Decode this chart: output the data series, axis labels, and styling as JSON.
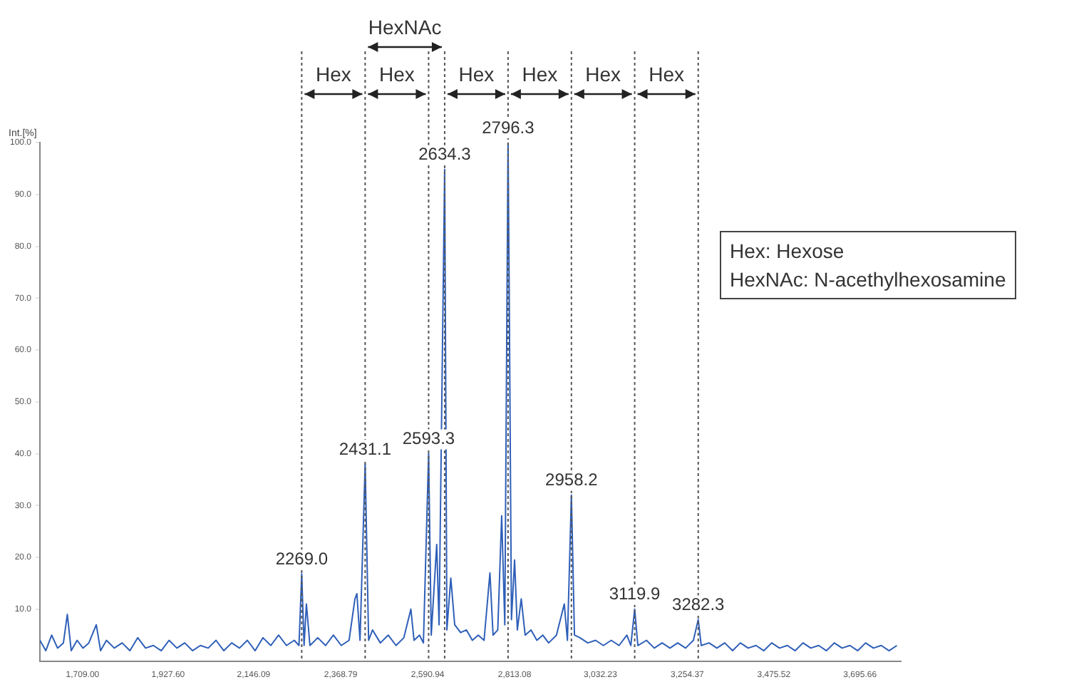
{
  "chart_data": {
    "type": "line",
    "ylabel": "Int.[%]",
    "x": [
      1600,
      1615,
      1630,
      1645,
      1660,
      1670,
      1680,
      1695,
      1710,
      1725,
      1744,
      1755,
      1770,
      1790,
      1810,
      1830,
      1850,
      1870,
      1890,
      1910,
      1930,
      1950,
      1970,
      1990,
      2010,
      2030,
      2050,
      2070,
      2090,
      2110,
      2130,
      2150,
      2170,
      2190,
      2210,
      2230,
      2250,
      2262,
      2269,
      2275,
      2281,
      2290,
      2310,
      2330,
      2350,
      2370,
      2390,
      2405,
      2410,
      2418,
      2431.1,
      2440,
      2450,
      2470,
      2490,
      2510,
      2530,
      2548,
      2556,
      2570,
      2580,
      2593.3,
      2600,
      2614,
      2620,
      2634.3,
      2640,
      2650,
      2660,
      2675,
      2690,
      2705,
      2720,
      2735,
      2750,
      2758,
      2770,
      2780,
      2788,
      2796.3,
      2799,
      2805,
      2813,
      2820,
      2830,
      2840,
      2855,
      2870,
      2885,
      2900,
      2920,
      2940,
      2948,
      2958.2,
      2966,
      2980,
      3000,
      3020,
      3040,
      3060,
      3080,
      3100,
      3110,
      3119.9,
      3128,
      3150,
      3170,
      3190,
      3210,
      3230,
      3250,
      3270,
      3282.3,
      3290,
      3310,
      3330,
      3350,
      3370,
      3390,
      3410,
      3430,
      3450,
      3470,
      3490,
      3510,
      3530,
      3550,
      3570,
      3590,
      3610,
      3630,
      3650,
      3670,
      3690,
      3710,
      3730,
      3750,
      3770,
      3790
    ],
    "series": [
      {
        "color": "#2f5fb8",
        "values": [
          4,
          2,
          5,
          2.5,
          3.5,
          9,
          2,
          4,
          2.5,
          3.5,
          7,
          2,
          4,
          2.5,
          3.5,
          2,
          4.5,
          2.5,
          3,
          2,
          4,
          2.5,
          3.5,
          2,
          3,
          2.5,
          4,
          2,
          3.5,
          2.5,
          4,
          2,
          4.5,
          3,
          5,
          3,
          4,
          3,
          16.8,
          3,
          11,
          3,
          4.5,
          3,
          5,
          3,
          4,
          12,
          13,
          4,
          38,
          4,
          6,
          3.5,
          5,
          3,
          4.5,
          10,
          4,
          5,
          3.5,
          40,
          5,
          22.5,
          7,
          94.8,
          6,
          16,
          7,
          5.5,
          6,
          4,
          5,
          4,
          17,
          5,
          6,
          28,
          7,
          100,
          74,
          8,
          19.5,
          6,
          12,
          5,
          6,
          4,
          5,
          3.5,
          5,
          11,
          4,
          32,
          5,
          4.5,
          3.5,
          4,
          3,
          4,
          3,
          5,
          3,
          10,
          3,
          4,
          2.5,
          3.5,
          2.5,
          3.5,
          2.5,
          4,
          8,
          3,
          3.5,
          2.5,
          3.5,
          2,
          3.5,
          2.5,
          3,
          2,
          3.5,
          2.5,
          3,
          2,
          3.5,
          2.5,
          3,
          2,
          3.5,
          2.5,
          3,
          2,
          3.5,
          2.5,
          3,
          2,
          3
        ]
      }
    ],
    "xlim": [
      1600,
      3800
    ],
    "xticks": [
      {
        "value": 1709,
        "label": "1,709.00"
      },
      {
        "value": 1927.6,
        "label": "1,927.60"
      },
      {
        "value": 2146.09,
        "label": "2,146.09"
      },
      {
        "value": 2368.79,
        "label": "2,368.79"
      },
      {
        "value": 2590.94,
        "label": "2,590.94"
      },
      {
        "value": 2813.08,
        "label": "2,813.08"
      },
      {
        "value": 3032.23,
        "label": "3,032.23"
      },
      {
        "value": 3254.37,
        "label": "3,254.37"
      },
      {
        "value": 3475.52,
        "label": "3,475.52"
      },
      {
        "value": 3695.66,
        "label": "3,695.66"
      }
    ],
    "ylim": [
      0,
      100
    ],
    "yticks": [
      {
        "value": 10,
        "label": "10.0"
      },
      {
        "value": 20,
        "label": "20.0"
      },
      {
        "value": 30,
        "label": "30.0"
      },
      {
        "value": 40,
        "label": "40.0"
      },
      {
        "value": 50,
        "label": "50.0"
      },
      {
        "value": 60,
        "label": "60.0"
      },
      {
        "value": 70,
        "label": "70.0"
      },
      {
        "value": 80,
        "label": "80.0"
      },
      {
        "value": 90,
        "label": "90.0"
      },
      {
        "value": 100,
        "label": "100.0"
      }
    ],
    "grid": false,
    "legend": false,
    "marker": "none",
    "line_style": "solid",
    "ref_lines": [
      {
        "axis": "x",
        "value": 2269.0,
        "line_style": "dotted",
        "color": "#555555"
      },
      {
        "axis": "x",
        "value": 2431.1,
        "line_style": "dotted",
        "color": "#555555"
      },
      {
        "axis": "x",
        "value": 2593.3,
        "line_style": "dotted",
        "color": "#555555"
      },
      {
        "axis": "x",
        "value": 2634.3,
        "line_style": "dotted",
        "color": "#555555"
      },
      {
        "axis": "x",
        "value": 2796.3,
        "line_style": "dotted",
        "color": "#555555"
      },
      {
        "axis": "x",
        "value": 2958.2,
        "line_style": "dotted",
        "color": "#555555"
      },
      {
        "axis": "x",
        "value": 3119.9,
        "line_style": "dotted",
        "color": "#555555"
      },
      {
        "axis": "x",
        "value": 3282.3,
        "line_style": "dotted",
        "color": "#555555"
      }
    ],
    "annotations": [
      "Hex",
      "Hex",
      "HexNAc",
      "Hex",
      "Hex",
      "Hex",
      "Hex",
      {
        "text": "2269.0",
        "x": 2269.0,
        "y": 16.8
      },
      {
        "text": "2431.1",
        "x": 2431.1,
        "y": 38
      },
      {
        "text": "2593.3",
        "x": 2593.3,
        "y": 40
      },
      {
        "text": "2634.3",
        "x": 2634.3,
        "y": 94.8
      },
      {
        "text": "2796.3",
        "x": 2796.3,
        "y": 100
      },
      {
        "text": "2958.2",
        "x": 2958.2,
        "y": 32
      },
      {
        "text": "3119.9",
        "x": 3119.9,
        "y": 10
      },
      {
        "text": "3282.3",
        "x": 3282.3,
        "y": 8
      },
      "Hex: Hexose",
      "HexNAc: N-acethylhexosamine"
    ]
  }
}
